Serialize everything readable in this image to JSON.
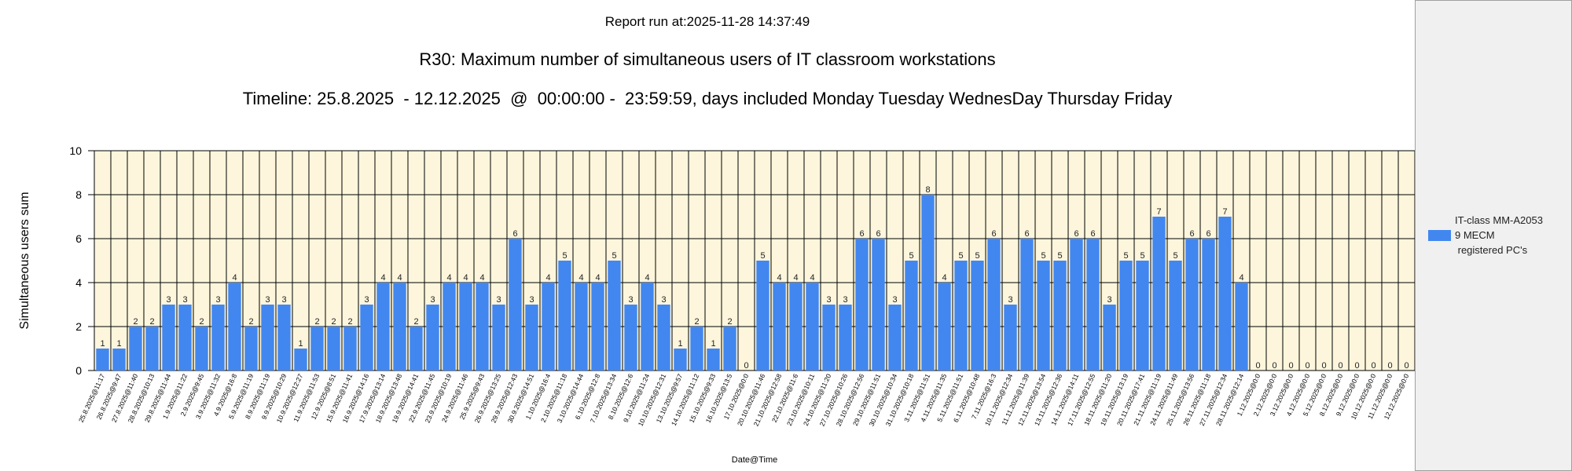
{
  "report_run": "Report run at:2025-11-28 14:37:49",
  "title": "R30: Maximum number of simultaneous users of IT classroom workstations",
  "timeline": "Timeline: 25.8.2025  - 12.12.2025  @  00:00:00 -  23:59:59, days included Monday Tuesday WednesDay Thursday Friday",
  "legend": {
    "label_lines": [
      "IT-class MM-A2053",
      "9 MECM",
      " registered PC's"
    ],
    "color": "#4287f0"
  },
  "colors": {
    "bar": "#4287f0",
    "plot_bg": "#fdf6dc",
    "grid": "#000000",
    "legend_panel": "#f0f0f0"
  },
  "chart_data": {
    "type": "bar",
    "xlabel": "Date@Time",
    "ylabel": "Simultaneous users sum",
    "ylim": [
      0,
      10
    ],
    "y_ticks": [
      0,
      2,
      4,
      6,
      8,
      10
    ],
    "grid": true,
    "legend_position": "right",
    "categories": [
      "25.8.2025@11:17",
      "26.8.2025@9:47",
      "27.8.2025@11:40",
      "28.8.2025@10:13",
      "29.8.2025@11:44",
      "1.9.2025@11:22",
      "2.9.2025@9:45",
      "3.9.2025@11:32",
      "4.9.2025@16:8",
      "5.9.2025@11:19",
      "8.9.2025@11:19",
      "9.9.2025@10:29",
      "10.9.2025@12:27",
      "11.9.2025@11:53",
      "12.9.2025@8:51",
      "15.9.2025@11:41",
      "16.9.2025@14:16",
      "17.9.2025@13:14",
      "18.9.2025@13:48",
      "19.9.2025@14:41",
      "22.9.2025@11:45",
      "23.9.2025@10:19",
      "24.9.2025@11:46",
      "25.9.2025@9:43",
      "26.9.2025@13:25",
      "29.9.2025@12:43",
      "30.9.2025@14:51",
      "1.10.2025@16:4",
      "2.10.2025@11:18",
      "3.10.2025@14:44",
      "6.10.2025@12:8",
      "7.10.2025@13:34",
      "8.10.2025@12:6",
      "9.10.2025@11:24",
      "10.10.2025@12:31",
      "13.10.2025@9:57",
      "14.10.2025@11:12",
      "15.10.2025@9:33",
      "16.10.2025@13:5",
      "17.10.2025@0:0",
      "20.10.2025@11:46",
      "21.10.2025@12:58",
      "22.10.2025@11:6",
      "23.10.2025@10:11",
      "24.10.2025@11:20",
      "27.10.2025@10:26",
      "28.10.2025@12:56",
      "29.10.2025@11:51",
      "30.10.2025@10:34",
      "31.10.2025@10:18",
      "3.11.2025@11:51",
      "4.11.2025@11:35",
      "5.11.2025@11:51",
      "6.11.2025@10:48",
      "7.11.2025@16:3",
      "10.11.2025@12:34",
      "11.11.2025@11:39",
      "12.11.2025@13:54",
      "13.11.2025@12:36",
      "14.11.2025@14:11",
      "17.11.2025@12:55",
      "18.11.2025@11:20",
      "19.11.2025@13:19",
      "20.11.2025@17:41",
      "21.11.2025@11:19",
      "24.11.2025@11:49",
      "25.11.2025@13:56",
      "26.11.2025@11:18",
      "27.11.2025@12:34",
      "28.11.2025@12:14",
      "1.12.2025@0:0",
      "2.12.2025@0:0",
      "3.12.2025@0:0",
      "4.12.2025@0:0",
      "5.12.2025@0:0",
      "8.12.2025@0:0",
      "9.12.2025@0:0",
      "10.12.2025@0:0",
      "11.12.2025@0:0",
      "12.12.2025@0:0"
    ],
    "series": [
      {
        "name": "IT-class MM-A2053 9 MECM registered PC's",
        "values": [
          1,
          1,
          2,
          2,
          3,
          3,
          2,
          3,
          4,
          2,
          3,
          3,
          1,
          2,
          2,
          2,
          3,
          4,
          4,
          2,
          3,
          4,
          4,
          4,
          3,
          6,
          3,
          4,
          5,
          4,
          4,
          5,
          3,
          4,
          3,
          1,
          2,
          1,
          2,
          0,
          5,
          4,
          4,
          4,
          3,
          3,
          6,
          6,
          3,
          5,
          8,
          4,
          5,
          5,
          6,
          3,
          6,
          5,
          5,
          6,
          6,
          3,
          5,
          5,
          7,
          5,
          6,
          6,
          7,
          4,
          0,
          0,
          0,
          0,
          0,
          0,
          0,
          0,
          0,
          0
        ]
      }
    ]
  }
}
